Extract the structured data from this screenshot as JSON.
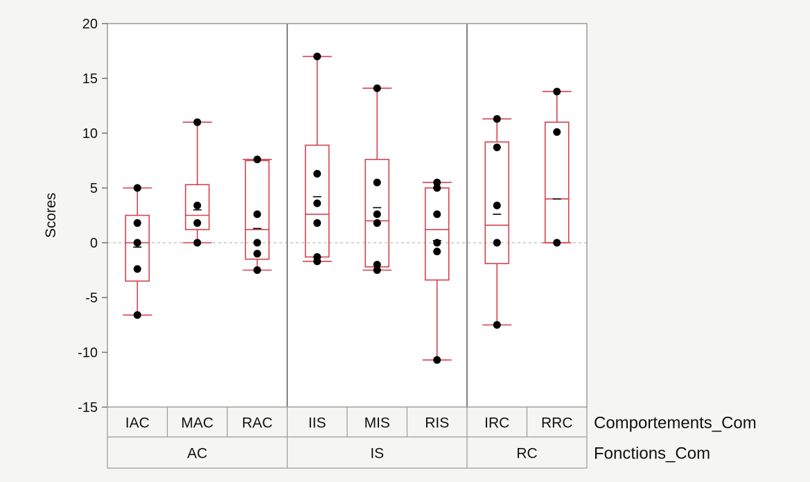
{
  "chart_data": {
    "type": "box",
    "ylabel": "Scores",
    "ylim": [
      -15,
      20
    ],
    "yticks": [
      -15,
      -10,
      -5,
      0,
      5,
      10,
      15,
      20
    ],
    "reference_line": 0,
    "grid": false,
    "x_level1_name": "Comportements_Com",
    "x_level2_name": "Fonctions_Com",
    "groups": [
      {
        "name": "AC",
        "categories": [
          "IAC",
          "MAC",
          "RAC"
        ]
      },
      {
        "name": "IS",
        "categories": [
          "IIS",
          "MIS",
          "RIS"
        ]
      },
      {
        "name": "RC",
        "categories": [
          "IRC",
          "RRC"
        ]
      }
    ],
    "boxes": [
      {
        "category": "IAC",
        "min": -6.6,
        "q1": -3.5,
        "median": 0.0,
        "q3": 2.5,
        "max": 5.0,
        "mean": -0.4,
        "points": [
          5.0,
          1.8,
          0.0,
          -2.4,
          -6.6
        ]
      },
      {
        "category": "MAC",
        "min": 0.0,
        "q1": 1.2,
        "median": 2.5,
        "q3": 5.3,
        "max": 11.0,
        "mean": 3.0,
        "points": [
          11.0,
          3.4,
          1.8,
          0.0
        ]
      },
      {
        "category": "RAC",
        "min": -2.5,
        "q1": -1.5,
        "median": 1.2,
        "q3": 7.5,
        "max": 7.6,
        "mean": 1.3,
        "points": [
          7.6,
          2.6,
          0.0,
          -1.0,
          -2.5
        ]
      },
      {
        "category": "IIS",
        "min": -1.7,
        "q1": -1.3,
        "median": 2.6,
        "q3": 8.9,
        "max": 17.0,
        "mean": 4.2,
        "points": [
          17.0,
          6.3,
          3.6,
          1.8,
          -1.3,
          -1.7
        ]
      },
      {
        "category": "MIS",
        "min": -2.5,
        "q1": -2.2,
        "median": 2.0,
        "q3": 7.6,
        "max": 14.1,
        "mean": 3.2,
        "points": [
          14.1,
          5.5,
          2.6,
          1.8,
          -2.0,
          -2.5
        ]
      },
      {
        "category": "RIS",
        "min": -10.7,
        "q1": -3.4,
        "median": 1.2,
        "q3": 5.0,
        "max": 5.5,
        "mean": 0.2,
        "points": [
          5.5,
          5.0,
          2.6,
          0.0,
          -0.8,
          -10.7
        ]
      },
      {
        "category": "IRC",
        "min": -7.5,
        "q1": -1.9,
        "median": 1.6,
        "q3": 9.2,
        "max": 11.3,
        "mean": 2.6,
        "points": [
          11.3,
          8.7,
          3.4,
          0.0,
          -7.5
        ]
      },
      {
        "category": "RRC",
        "min": 0.0,
        "q1": 0.0,
        "median": 4.0,
        "q3": 11.0,
        "max": 13.8,
        "mean": 4.0,
        "points": [
          13.8,
          10.1,
          0.0
        ]
      }
    ],
    "colors": {
      "box": "#d5404e",
      "point": "#000000",
      "mean": "#000000",
      "frame": "#9a9a9a",
      "reference": "#bbbbbb"
    }
  }
}
